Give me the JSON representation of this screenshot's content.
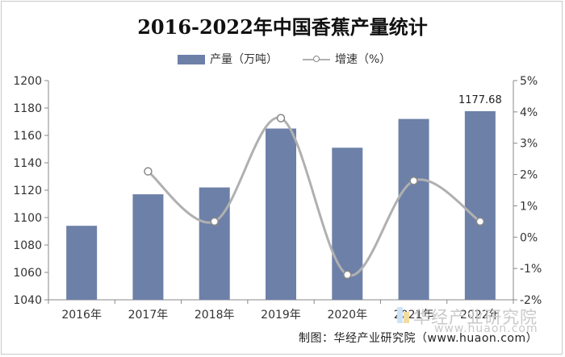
{
  "chart_data": {
    "type": "bar",
    "title": "2016-2022年中国香蕉产量统计",
    "categories": [
      "2016年",
      "2017年",
      "2018年",
      "2019年",
      "2020年",
      "2021年",
      "2022年"
    ],
    "series": [
      {
        "name": "产量（万吨）",
        "type": "bar",
        "axis": "left",
        "color": "#6d80a8",
        "values": [
          1094,
          1117,
          1122,
          1165,
          1151,
          1172,
          1177.68
        ]
      },
      {
        "name": "增速（%）",
        "type": "line",
        "axis": "right",
        "color": "#b0b0b0",
        "values": [
          null,
          2.1,
          0.5,
          3.8,
          -1.2,
          1.8,
          0.5
        ]
      }
    ],
    "data_labels": [
      {
        "index": 6,
        "text": "1177.68"
      }
    ],
    "ylim_left": [
      1040,
      1200
    ],
    "yticks_left": [
      "1040",
      "1060",
      "1080",
      "1100",
      "1120",
      "1140",
      "1160",
      "1180",
      "1200"
    ],
    "ylim_right": [
      -2,
      5
    ],
    "yticks_right": [
      "-2%",
      "-1%",
      "0%",
      "1%",
      "2%",
      "3%",
      "4%",
      "5%"
    ],
    "grid": false,
    "legend_position": "top"
  },
  "footer": "制图：华经产业研究院（www.huaon.com）",
  "watermark": {
    "text": "华经产业研究院",
    "url": "www.huaon.com"
  }
}
